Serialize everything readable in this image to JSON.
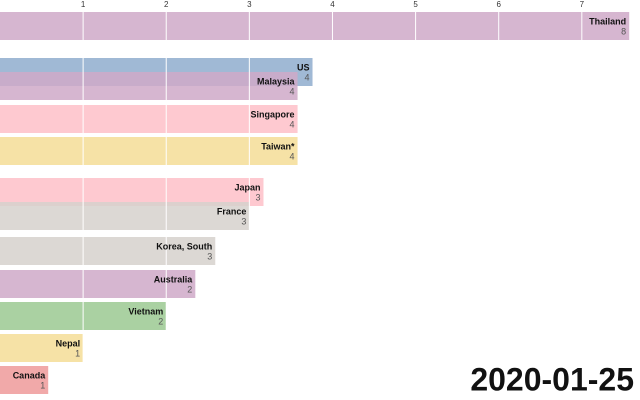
{
  "chart_data": {
    "type": "bar",
    "orientation": "horizontal",
    "date_label": "2020-01-25",
    "categories": [
      "Thailand",
      "US",
      "Malaysia",
      "Singapore",
      "Taiwan*",
      "Japan",
      "France",
      "Korea, South",
      "Australia",
      "Vietnam",
      "Nepal",
      "Canada"
    ],
    "values": [
      7.57,
      3.76,
      3.58,
      3.58,
      3.58,
      3.17,
      3.0,
      2.59,
      2.35,
      2.0,
      1.0,
      0.58
    ],
    "value_labels": [
      "8",
      "4",
      "4",
      "4",
      "4",
      "3",
      "3",
      "3",
      "2",
      "2",
      "1",
      "1"
    ],
    "colors": [
      "#cfa9c8",
      "#8fadce",
      "#cfa9c8",
      "#fec0c8",
      "#f5dd97",
      "#fec0c8",
      "#d6d1cc",
      "#d6d1cc",
      "#cfa9c8",
      "#9bc992",
      "#f5dd97",
      "#ef9a9a"
    ],
    "xlim": [
      0,
      7.7
    ],
    "xticks": [
      1,
      2,
      3,
      4,
      5,
      6,
      7
    ],
    "grid": true
  }
}
